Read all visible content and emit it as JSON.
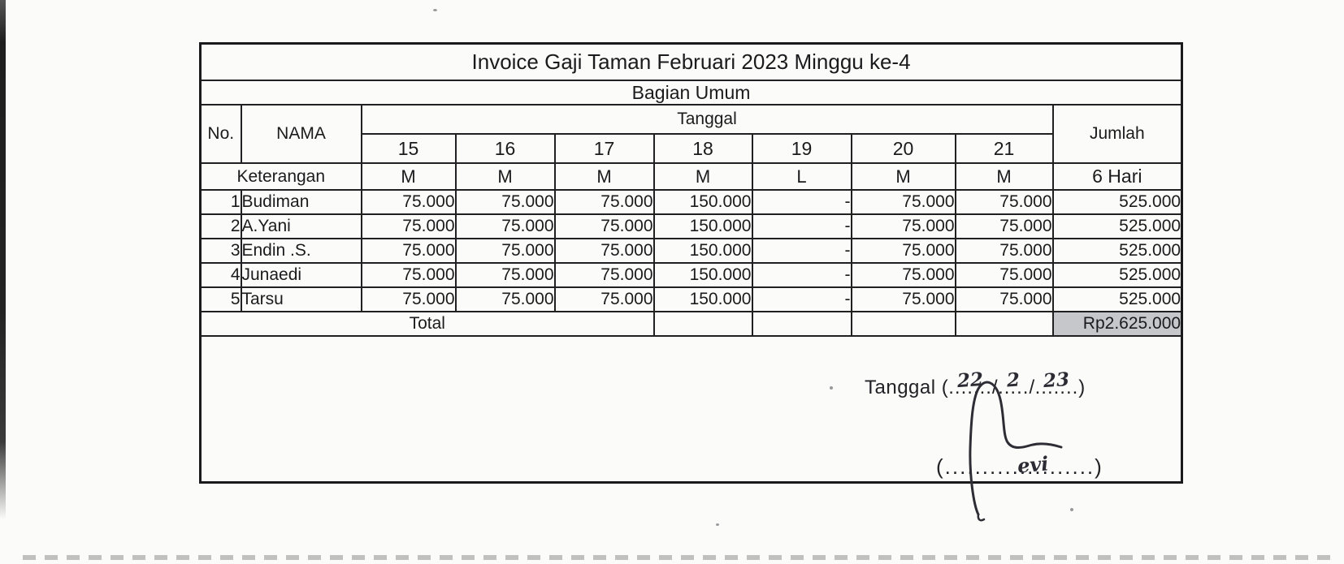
{
  "document": {
    "title": "Invoice Gaji Taman Februari 2023 Minggu ke-4",
    "subtitle": "Bagian Umum",
    "table": {
      "col_no_label": "No.",
      "col_name_label": "NAMA",
      "col_group_label": "Tanggal",
      "date_columns": [
        "15",
        "16",
        "17",
        "18",
        "19",
        "20",
        "21"
      ],
      "col_sum_label": "Jumlah",
      "keterangan_label": "Keterangan",
      "keterangan_values": [
        "M",
        "M",
        "M",
        "M",
        "L",
        "M",
        "M"
      ],
      "keterangan_sum": "6 Hari",
      "rows": [
        {
          "no": "1",
          "name": "Budiman",
          "values": [
            "75.000",
            "75.000",
            "75.000",
            "150.000",
            "-",
            "75.000",
            "75.000"
          ],
          "sum": "525.000"
        },
        {
          "no": "2",
          "name": "A.Yani",
          "values": [
            "75.000",
            "75.000",
            "75.000",
            "150.000",
            "-",
            "75.000",
            "75.000"
          ],
          "sum": "525.000"
        },
        {
          "no": "3",
          "name": "Endin .S.",
          "values": [
            "75.000",
            "75.000",
            "75.000",
            "150.000",
            "-",
            "75.000",
            "75.000"
          ],
          "sum": "525.000"
        },
        {
          "no": "4",
          "name": "Junaedi",
          "values": [
            "75.000",
            "75.000",
            "75.000",
            "150.000",
            "-",
            "75.000",
            "75.000"
          ],
          "sum": "525.000"
        },
        {
          "no": "5",
          "name": "Tarsu",
          "values": [
            "75.000",
            "75.000",
            "75.000",
            "150.000",
            "-",
            "75.000",
            "75.000"
          ],
          "sum": "525.000"
        }
      ],
      "total_label": "Total",
      "total_value": "Rp2.625.000"
    },
    "signature": {
      "date_prefix": "Tanggal (",
      "date_close": ")",
      "slash": "/",
      "day_dots": ".......",
      "month_dots": ".....",
      "year_dots": ".......",
      "day": "22",
      "month": "2",
      "year": "23",
      "name_open": "(",
      "name_dots": "....................",
      "name_close": ")",
      "handwritten_name": "evi"
    }
  },
  "colors": {
    "paper": "#fbfbf9",
    "table_line": "#202022",
    "ink": "#1b1b1d",
    "pen": "#2c2b33",
    "total_highlight": "#c6c7cb"
  }
}
